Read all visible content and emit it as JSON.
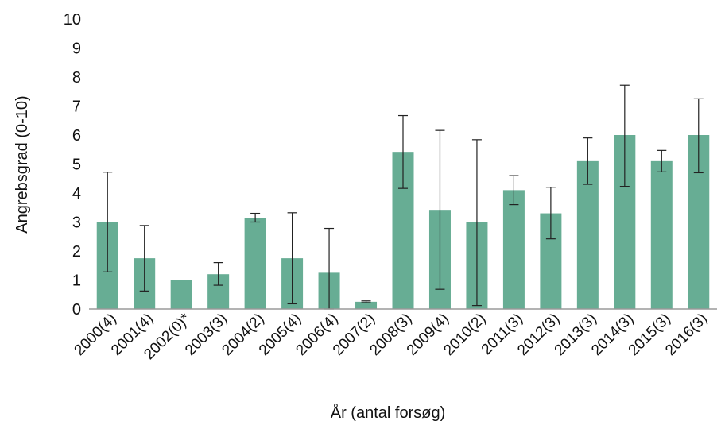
{
  "chart_data": {
    "type": "bar",
    "title": "",
    "xlabel": "År (antal forsøg)",
    "ylabel": "Angrebsgrad (0-10)",
    "ylim": [
      0,
      10
    ],
    "yticks": [
      "0",
      "1",
      "2",
      "3",
      "4",
      "5",
      "6",
      "7",
      "8",
      "9",
      "10"
    ],
    "grid": false,
    "bar_color": "#67ad94",
    "categories": [
      "2000(4)",
      "2001(4)",
      "2002(0)*",
      "2003(3)",
      "2004(2)",
      "2005(4)",
      "2006(4)",
      "2007(2)",
      "2008(3)",
      "2009(4)",
      "2010(2)",
      "2011(3)",
      "2012(3)",
      "2013(3)",
      "2014(3)",
      "2015(3)",
      "2016(3)"
    ],
    "values": [
      3.0,
      1.75,
      1.0,
      1.2,
      3.15,
      1.75,
      1.25,
      0.25,
      5.42,
      3.42,
      3.0,
      4.1,
      3.3,
      5.1,
      6.0,
      5.1,
      6.0
    ],
    "error_low": [
      1.28,
      0.62,
      null,
      0.82,
      3.0,
      0.18,
      0.0,
      0.22,
      4.16,
      0.68,
      0.12,
      3.6,
      2.42,
      4.3,
      4.23,
      4.73,
      4.7
    ],
    "error_high": [
      4.72,
      2.88,
      null,
      1.6,
      3.3,
      3.32,
      2.78,
      0.28,
      6.67,
      6.16,
      5.84,
      4.6,
      4.2,
      5.9,
      7.72,
      5.47,
      7.25
    ]
  }
}
